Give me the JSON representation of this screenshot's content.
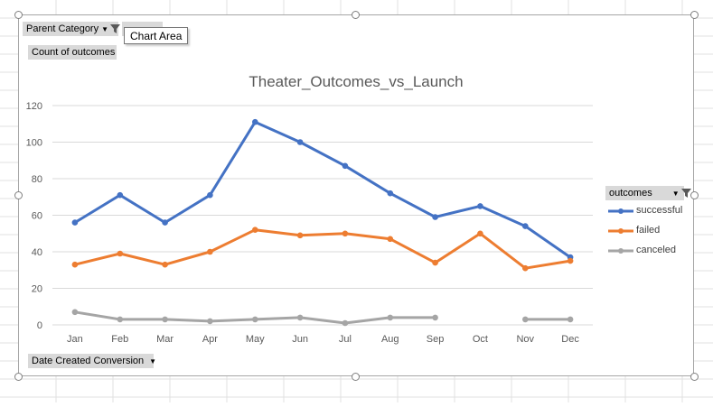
{
  "pivot": {
    "parent_category_label": "Parent Category",
    "count_field_label": "Count of outcomes",
    "legend_field_label": "outcomes",
    "axis_field_label": "Date Created Conversion"
  },
  "tooltip": {
    "text": "Chart Area"
  },
  "colors": {
    "successful": "#4472c4",
    "failed": "#ed7d31",
    "canceled": "#a5a5a5",
    "gridline": "#d9d9d9",
    "axis_text": "#595959",
    "title_text": "#595959"
  },
  "chart_data": {
    "type": "line",
    "title": "Theater_Outcomes_vs_Launch",
    "xlabel": "",
    "ylabel": "",
    "ylim": [
      0,
      120
    ],
    "yticks": [
      0,
      20,
      40,
      60,
      80,
      100,
      120
    ],
    "grid": true,
    "legend_position": "right",
    "categories": [
      "Jan",
      "Feb",
      "Mar",
      "Apr",
      "May",
      "Jun",
      "Jul",
      "Aug",
      "Sep",
      "Oct",
      "Nov",
      "Dec"
    ],
    "series": [
      {
        "name": "successful",
        "values": [
          56,
          71,
          56,
          71,
          111,
          100,
          87,
          72,
          59,
          65,
          54,
          37
        ]
      },
      {
        "name": "failed",
        "values": [
          33,
          39,
          33,
          40,
          52,
          49,
          50,
          47,
          34,
          50,
          31,
          35
        ]
      },
      {
        "name": "canceled",
        "values": [
          7,
          3,
          3,
          2,
          3,
          4,
          1,
          4,
          4,
          null,
          3,
          3
        ]
      }
    ]
  }
}
